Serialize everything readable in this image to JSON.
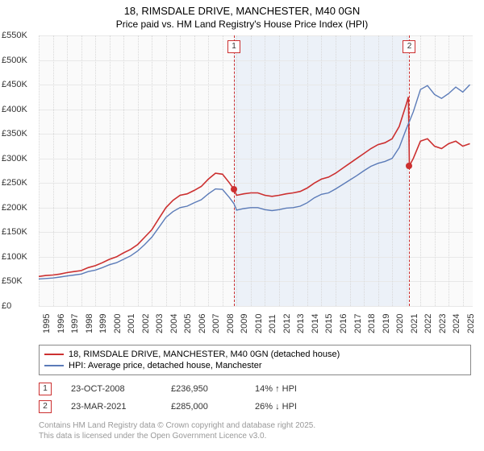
{
  "title": {
    "line1": "18, RIMSDALE DRIVE, MANCHESTER, M40 0GN",
    "line2": "Price paid vs. HM Land Registry's House Price Index (HPI)"
  },
  "chart": {
    "type": "line",
    "background_color": "#fafafa",
    "grid_color": "#e8e8e8",
    "band_color": "#e6edf7",
    "ylim": [
      0,
      550000
    ],
    "ytick_step": 50000,
    "yticks": [
      "£0",
      "£50K",
      "£100K",
      "£150K",
      "£200K",
      "£250K",
      "£300K",
      "£350K",
      "£400K",
      "£450K",
      "£500K",
      "£550K"
    ],
    "xlim": [
      1995,
      2025.7
    ],
    "xticks": [
      1995,
      1996,
      1997,
      1998,
      1999,
      2000,
      2001,
      2002,
      2003,
      2004,
      2005,
      2006,
      2007,
      2008,
      2009,
      2010,
      2011,
      2012,
      2013,
      2014,
      2015,
      2016,
      2017,
      2018,
      2019,
      2020,
      2021,
      2022,
      2023,
      2024,
      2025
    ],
    "bands": [
      {
        "from": 2008.81,
        "to": 2021.22
      }
    ],
    "markers": [
      {
        "id": "1",
        "x": 2008.81,
        "y": 236950
      },
      {
        "id": "2",
        "x": 2021.22,
        "y": 285000
      }
    ],
    "series": [
      {
        "name": "property",
        "color": "#cc3030",
        "width": 1.6,
        "label": "18, RIMSDALE DRIVE, MANCHESTER, M40 0GN (detached house)",
        "points": [
          [
            1995,
            60000
          ],
          [
            1995.5,
            62000
          ],
          [
            1996,
            63000
          ],
          [
            1996.5,
            65000
          ],
          [
            1997,
            68000
          ],
          [
            1997.5,
            70000
          ],
          [
            1998,
            72000
          ],
          [
            1998.5,
            78000
          ],
          [
            1999,
            82000
          ],
          [
            1999.5,
            88000
          ],
          [
            2000,
            95000
          ],
          [
            2000.5,
            100000
          ],
          [
            2001,
            108000
          ],
          [
            2001.5,
            115000
          ],
          [
            2002,
            125000
          ],
          [
            2002.5,
            140000
          ],
          [
            2003,
            155000
          ],
          [
            2003.5,
            178000
          ],
          [
            2004,
            200000
          ],
          [
            2004.5,
            215000
          ],
          [
            2005,
            225000
          ],
          [
            2005.5,
            228000
          ],
          [
            2006,
            235000
          ],
          [
            2006.5,
            243000
          ],
          [
            2007,
            258000
          ],
          [
            2007.5,
            270000
          ],
          [
            2008,
            268000
          ],
          [
            2008.5,
            250000
          ],
          [
            2008.81,
            236950
          ],
          [
            2009,
            225000
          ],
          [
            2009.5,
            228000
          ],
          [
            2010,
            230000
          ],
          [
            2010.5,
            230000
          ],
          [
            2011,
            225000
          ],
          [
            2011.5,
            223000
          ],
          [
            2012,
            225000
          ],
          [
            2012.5,
            228000
          ],
          [
            2013,
            230000
          ],
          [
            2013.5,
            233000
          ],
          [
            2014,
            240000
          ],
          [
            2014.5,
            250000
          ],
          [
            2015,
            258000
          ],
          [
            2015.5,
            262000
          ],
          [
            2016,
            270000
          ],
          [
            2016.5,
            280000
          ],
          [
            2017,
            290000
          ],
          [
            2017.5,
            300000
          ],
          [
            2018,
            310000
          ],
          [
            2018.5,
            320000
          ],
          [
            2019,
            328000
          ],
          [
            2019.5,
            332000
          ],
          [
            2020,
            340000
          ],
          [
            2020.5,
            365000
          ],
          [
            2021,
            410000
          ],
          [
            2021.15,
            425000
          ],
          [
            2021.22,
            285000
          ],
          [
            2021.5,
            300000
          ],
          [
            2022,
            335000
          ],
          [
            2022.5,
            340000
          ],
          [
            2023,
            325000
          ],
          [
            2023.5,
            320000
          ],
          [
            2024,
            330000
          ],
          [
            2024.5,
            335000
          ],
          [
            2025,
            325000
          ],
          [
            2025.5,
            330000
          ]
        ]
      },
      {
        "name": "hpi",
        "color": "#5b7bb8",
        "width": 1.4,
        "label": "HPI: Average price, detached house, Manchester",
        "points": [
          [
            1995,
            55000
          ],
          [
            1995.5,
            56000
          ],
          [
            1996,
            57000
          ],
          [
            1996.5,
            59000
          ],
          [
            1997,
            61000
          ],
          [
            1997.5,
            63000
          ],
          [
            1998,
            65000
          ],
          [
            1998.5,
            70000
          ],
          [
            1999,
            73000
          ],
          [
            1999.5,
            78000
          ],
          [
            2000,
            84000
          ],
          [
            2000.5,
            88000
          ],
          [
            2001,
            95000
          ],
          [
            2001.5,
            102000
          ],
          [
            2002,
            112000
          ],
          [
            2002.5,
            125000
          ],
          [
            2003,
            140000
          ],
          [
            2003.5,
            160000
          ],
          [
            2004,
            180000
          ],
          [
            2004.5,
            192000
          ],
          [
            2005,
            200000
          ],
          [
            2005.5,
            203000
          ],
          [
            2006,
            210000
          ],
          [
            2006.5,
            216000
          ],
          [
            2007,
            228000
          ],
          [
            2007.5,
            238000
          ],
          [
            2008,
            237000
          ],
          [
            2008.5,
            220000
          ],
          [
            2008.81,
            208000
          ],
          [
            2009,
            195000
          ],
          [
            2009.5,
            198000
          ],
          [
            2010,
            200000
          ],
          [
            2010.5,
            200000
          ],
          [
            2011,
            196000
          ],
          [
            2011.5,
            194000
          ],
          [
            2012,
            196000
          ],
          [
            2012.5,
            199000
          ],
          [
            2013,
            200000
          ],
          [
            2013.5,
            203000
          ],
          [
            2014,
            210000
          ],
          [
            2014.5,
            220000
          ],
          [
            2015,
            227000
          ],
          [
            2015.5,
            230000
          ],
          [
            2016,
            238000
          ],
          [
            2016.5,
            247000
          ],
          [
            2017,
            256000
          ],
          [
            2017.5,
            265000
          ],
          [
            2018,
            275000
          ],
          [
            2018.5,
            284000
          ],
          [
            2019,
            290000
          ],
          [
            2019.5,
            294000
          ],
          [
            2020,
            300000
          ],
          [
            2020.5,
            322000
          ],
          [
            2021,
            360000
          ],
          [
            2021.22,
            375000
          ],
          [
            2021.5,
            395000
          ],
          [
            2022,
            440000
          ],
          [
            2022.5,
            448000
          ],
          [
            2023,
            430000
          ],
          [
            2023.5,
            422000
          ],
          [
            2024,
            432000
          ],
          [
            2024.5,
            445000
          ],
          [
            2025,
            435000
          ],
          [
            2025.5,
            450000
          ]
        ]
      }
    ]
  },
  "legend": {
    "items": [
      {
        "color": "#cc3030",
        "label": "18, RIMSDALE DRIVE, MANCHESTER, M40 0GN (detached house)"
      },
      {
        "color": "#5b7bb8",
        "label": "HPI: Average price, detached house, Manchester"
      }
    ]
  },
  "sales": [
    {
      "id": "1",
      "date": "23-OCT-2008",
      "price": "£236,950",
      "delta": "14% ↑ HPI"
    },
    {
      "id": "2",
      "date": "23-MAR-2021",
      "price": "£285,000",
      "delta": "26% ↓ HPI"
    }
  ],
  "footer": {
    "line1": "Contains HM Land Registry data © Crown copyright and database right 2025.",
    "line2": "This data is licensed under the Open Government Licence v3.0."
  }
}
